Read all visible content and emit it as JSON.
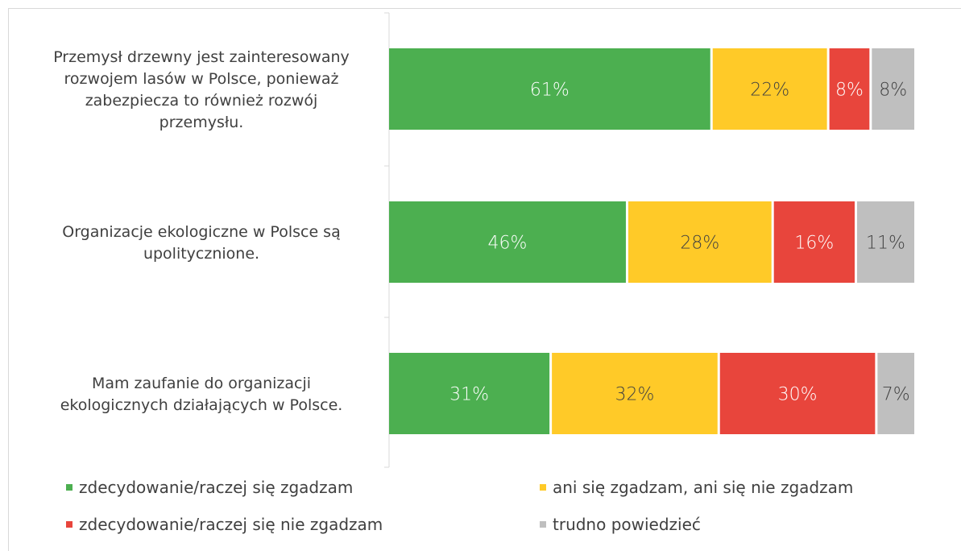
{
  "chart_data": {
    "type": "bar",
    "orientation": "horizontal",
    "stacked": true,
    "normalized_percent": true,
    "categories": [
      [
        "Przemysł drzewny jest zainteresowany",
        "rozwojem lasów w Polsce, ponieważ",
        "zabezpiecza to również rozwój",
        "przemysłu."
      ],
      [
        "Organizacje ekologiczne w Polsce są",
        "upolitycznione."
      ],
      [
        "Mam zaufanie do organizacji",
        "ekologicznych działających w Polsce."
      ]
    ],
    "series": [
      {
        "name": "zdecydowanie/raczej się zgadzam",
        "color": "#4caf50",
        "label_color": "#ffffff",
        "values": [
          61,
          46,
          31
        ]
      },
      {
        "name": "ani się zgadzam, ani się nie zgadzam",
        "color": "#ffca28",
        "label_color": "#404040",
        "values": [
          22,
          28,
          32
        ]
      },
      {
        "name": "zdecydowanie/raczej się nie zgadzam",
        "color": "#e8453c",
        "label_color": "#ffffff",
        "values": [
          8,
          16,
          30
        ]
      },
      {
        "name": "trudno powiedzieć",
        "color": "#bfbfbf",
        "label_color": "#404040",
        "values": [
          8,
          11,
          7
        ]
      }
    ],
    "value_labels": [
      [
        "61%",
        "22%",
        "8%",
        "8%"
      ],
      [
        "46%",
        "28%",
        "16%",
        "11%"
      ],
      [
        "31%",
        "32%",
        "30%",
        "7%"
      ]
    ],
    "legend": {
      "position": "bottom",
      "columns": 2
    },
    "grid": false
  }
}
